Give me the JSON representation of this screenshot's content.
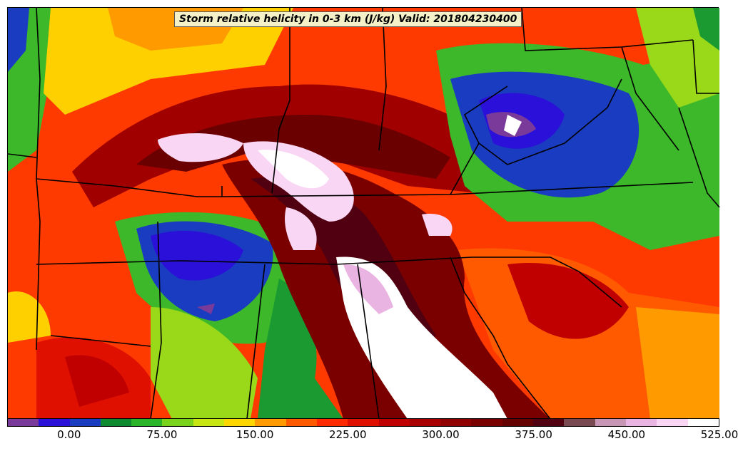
{
  "title": "Storm relative helicity in 0-3 km (J/kg) Valid: 201804230400",
  "colorbar": {
    "colors": [
      "#7a3a9a",
      "#2a10d8",
      "#1a3cc0",
      "#0e8a30",
      "#2ab42a",
      "#7ad21a",
      "#c8e614",
      "#ffd700",
      "#ff9a00",
      "#ff5a00",
      "#ff2a00",
      "#e01000",
      "#c00000",
      "#a80000",
      "#900000",
      "#7a0000",
      "#640000",
      "#500010",
      "#7a4a52",
      "#c696b4",
      "#eab4e2",
      "#f8d6f4",
      "#ffffff"
    ],
    "tick_labels": [
      "0.00",
      "75.00",
      "150.00",
      "225.00",
      "300.00",
      "375.00",
      "450.00",
      "525.00"
    ]
  }
}
